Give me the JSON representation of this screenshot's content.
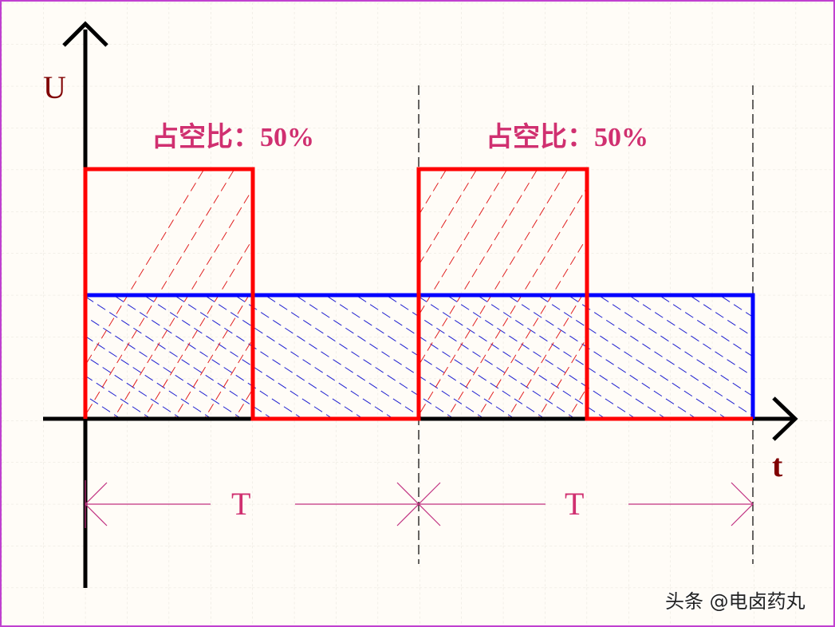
{
  "diagram": {
    "y_axis_label": "U",
    "x_axis_label": "t",
    "duty_labels": [
      "占空比：50%",
      "占空比：50%"
    ],
    "period_labels": [
      "T",
      "T"
    ],
    "watermark": "头条 @电卤药丸",
    "colors": {
      "pulse": "#ff0000",
      "average": "#0000ff",
      "axis": "#000000",
      "dimension": "#c03080",
      "text": "#d03070",
      "axis_text": "#800000",
      "border": "#c040d0"
    }
  }
}
